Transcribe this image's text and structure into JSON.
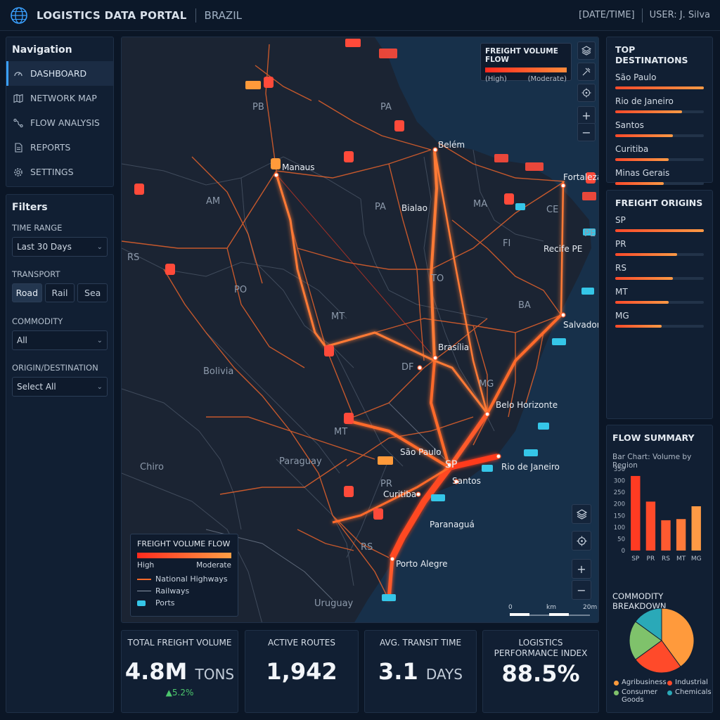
{
  "header": {
    "title": "LOGISTICS DATA PORTAL",
    "country": "BRAZIL",
    "datetime": "[DATE/TIME]",
    "user": "USER: J. Silva"
  },
  "nav": {
    "title": "Navigation",
    "items": [
      {
        "label": "DASHBOARD",
        "icon": "gauge-icon",
        "active": true
      },
      {
        "label": "NETWORK MAP",
        "icon": "map-icon"
      },
      {
        "label": "FLOW ANALYSIS",
        "icon": "flow-icon"
      },
      {
        "label": "REPORTS",
        "icon": "document-icon"
      },
      {
        "label": "SETTINGS",
        "icon": "gear-icon"
      }
    ]
  },
  "filters": {
    "title": "Filters",
    "time_range_label": "TIME RANGE",
    "time_range_value": "Last 30 Days",
    "transport_label": "TRANSPORT",
    "transport_options": [
      "Road",
      "Rail",
      "Sea"
    ],
    "transport_selected": "Road",
    "commodity_label": "COMMODITY",
    "commodity_value": "All",
    "origin_label": "ORIGIN/DESTINATION",
    "origin_value": "Select All"
  },
  "map": {
    "legend_top": {
      "title": "FREIGHT VOLUME FLOW",
      "high": "(High)",
      "low": "(Moderate)"
    },
    "legend_bottom": {
      "title": "FREIGHT VOLUME FLOW",
      "high": "High",
      "low": "Moderate",
      "items": [
        "National Highways",
        "Railways",
        "Ports"
      ]
    },
    "scale": {
      "start": "0",
      "mid": "km",
      "end": "20m"
    },
    "cities": [
      "Manaus",
      "Belém",
      "Fortaleza",
      "Bialao",
      "Recife PE",
      "Salvador",
      "Brasília",
      "Belo Horizonte",
      "São Paulo",
      "Rio de Janeiro",
      "Santos",
      "Curitiba",
      "Paranaguá",
      "Porto Alegre"
    ],
    "states": [
      "PB",
      "PA",
      "AM",
      "PA",
      "MA",
      "CE",
      "PE",
      "FI",
      "RS",
      "PO",
      "TO",
      "MT",
      "BA",
      "DF",
      "MG",
      "MT",
      "PR",
      "RS",
      "SP"
    ],
    "countries": [
      "Bolivia",
      "Chiro",
      "Paraguay",
      "Uruguay"
    ],
    "colors": {
      "flow_high": "#ff3b1f",
      "flow_moderate": "#ff8c3a",
      "ports": "#35c6e8"
    }
  },
  "top_destinations": {
    "title": "TOP DESTINATIONS",
    "items": [
      {
        "name": "São Paulo",
        "share": 1.0
      },
      {
        "name": "Rio de Janeiro",
        "share": 0.75
      },
      {
        "name": "Santos",
        "share": 0.65
      },
      {
        "name": "Curitiba",
        "share": 0.6
      },
      {
        "name": "Minas Gerais",
        "share": 0.55
      }
    ]
  },
  "freight_origins": {
    "title": "FREIGHT ORIGINS",
    "items": [
      {
        "name": "SP",
        "share": 1.0
      },
      {
        "name": "PR",
        "share": 0.7
      },
      {
        "name": "RS",
        "share": 0.65
      },
      {
        "name": "MT",
        "share": 0.6
      },
      {
        "name": "MG",
        "share": 0.52
      }
    ]
  },
  "flow_summary": {
    "title": "FLOW SUMMARY",
    "subtitle": "Bar Chart: Volume by Region",
    "commodity_title": "COMMODITY BREAKDOWN",
    "pie_legend": [
      "Agribusiness",
      "Industrial",
      "Consumer Goods",
      "Chemicals"
    ]
  },
  "chart_data": [
    {
      "type": "bar",
      "title": "Bar Chart: Volume by Region",
      "categories": [
        "SP",
        "PR",
        "RS",
        "MT",
        "MG"
      ],
      "values": [
        320,
        210,
        130,
        135,
        190
      ],
      "ylim": [
        0,
        350
      ],
      "yticks": [
        0,
        50,
        100,
        150,
        200,
        250,
        300,
        350
      ],
      "colors": [
        "#ff3b22",
        "#ff4a2a",
        "#ff5a30",
        "#ff7a3a",
        "#ff9a45"
      ]
    },
    {
      "type": "pie",
      "title": "COMMODITY BREAKDOWN",
      "labels": [
        "Agribusiness",
        "Industrial",
        "Consumer Goods",
        "Chemicals"
      ],
      "values": [
        40,
        25,
        20,
        15
      ],
      "colors": [
        "#ff9a3c",
        "#ff4a2a",
        "#7fc26b",
        "#2aa9b8"
      ]
    }
  ],
  "kpis": [
    {
      "label": "TOTAL FREIGHT VOLUME",
      "value": "4.8M",
      "unit": "TONS",
      "delta": "▲5.2%"
    },
    {
      "label": "ACTIVE ROUTES",
      "value": "1,942",
      "unit": ""
    },
    {
      "label": "AVG. TRANSIT TIME",
      "value": "3.1",
      "unit": "DAYS"
    },
    {
      "label": "LOGISTICS PERFORMANCE INDEX",
      "value": "88.5%",
      "unit": ""
    }
  ]
}
